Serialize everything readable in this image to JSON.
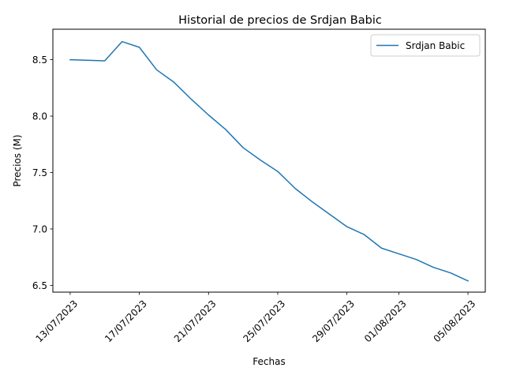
{
  "chart_data": {
    "type": "line",
    "title": "Historial de precios de Srdjan Babic",
    "xlabel": "Fechas",
    "ylabel": "Precios (M)",
    "x_tick_labels": [
      "13/07/2023",
      "17/07/2023",
      "21/07/2023",
      "25/07/2023",
      "29/07/2023",
      "01/08/2023",
      "05/08/2023"
    ],
    "x_ticks": [
      "2023-07-13",
      "2023-07-17",
      "2023-07-21",
      "2023-07-25",
      "2023-07-29",
      "2023-08-01",
      "2023-08-05"
    ],
    "y_tick_labels": [
      "6.5",
      "7.0",
      "7.5",
      "8.0",
      "8.5"
    ],
    "y_ticks": [
      6.5,
      7.0,
      7.5,
      8.0,
      8.5
    ],
    "xlim": [
      "2023-07-12",
      "2023-08-06"
    ],
    "ylim": [
      6.44,
      8.77
    ],
    "grid": false,
    "legend_position": "top-right",
    "series": [
      {
        "name": "Srdjan Babic",
        "color": "#1f77b4",
        "points": [
          {
            "x": "2023-07-13",
            "y": 8.5
          },
          {
            "x": "2023-07-15",
            "y": 8.49
          },
          {
            "x": "2023-07-16",
            "y": 8.66
          },
          {
            "x": "2023-07-17",
            "y": 8.61
          },
          {
            "x": "2023-07-18",
            "y": 8.41
          },
          {
            "x": "2023-07-19",
            "y": 8.3
          },
          {
            "x": "2023-07-20",
            "y": 8.15
          },
          {
            "x": "2023-07-21",
            "y": 8.01
          },
          {
            "x": "2023-07-22",
            "y": 7.88
          },
          {
            "x": "2023-07-23",
            "y": 7.72
          },
          {
            "x": "2023-07-24",
            "y": 7.61
          },
          {
            "x": "2023-07-25",
            "y": 7.51
          },
          {
            "x": "2023-07-26",
            "y": 7.36
          },
          {
            "x": "2023-07-27",
            "y": 7.24
          },
          {
            "x": "2023-07-28",
            "y": 7.13
          },
          {
            "x": "2023-07-29",
            "y": 7.02
          },
          {
            "x": "2023-07-30",
            "y": 6.95
          },
          {
            "x": "2023-07-31",
            "y": 6.83
          },
          {
            "x": "2023-08-01",
            "y": 6.78
          },
          {
            "x": "2023-08-02",
            "y": 6.73
          },
          {
            "x": "2023-08-03",
            "y": 6.66
          },
          {
            "x": "2023-08-04",
            "y": 6.61
          },
          {
            "x": "2023-08-05",
            "y": 6.54
          }
        ]
      }
    ]
  }
}
